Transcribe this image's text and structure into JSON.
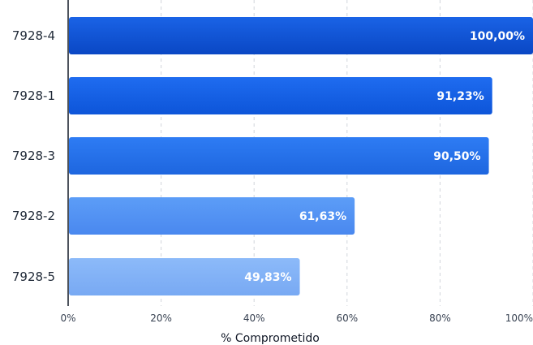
{
  "chart_data": {
    "type": "bar",
    "orientation": "horizontal",
    "title": "",
    "xlabel": "% Comprometido",
    "ylabel": "",
    "xlim": [
      0,
      100
    ],
    "grid": true,
    "categories": [
      "7928-4",
      "7928-1",
      "7928-3",
      "7928-2",
      "7928-5"
    ],
    "values": [
      100.0,
      91.23,
      90.5,
      61.63,
      49.83
    ],
    "value_labels": [
      "100,00%",
      "91,23%",
      "90,50%",
      "61,63%",
      "49,83%"
    ],
    "x_ticks": [
      0,
      20,
      40,
      60,
      80,
      100
    ],
    "x_tick_labels": [
      "0%",
      "20%",
      "40%",
      "60%",
      "80%",
      "100%"
    ],
    "colors": {
      "bar_top": [
        "#1a63e6",
        "#1f6cf0",
        "#2e7cf4",
        "#5c9df7",
        "#8cbaf9"
      ],
      "bar_bottom": [
        "#0a47c4",
        "#0d55d9",
        "#1e66df",
        "#4a88ef",
        "#78a9f3"
      ],
      "grid": "#d1d5db",
      "axis": "#111827"
    }
  }
}
